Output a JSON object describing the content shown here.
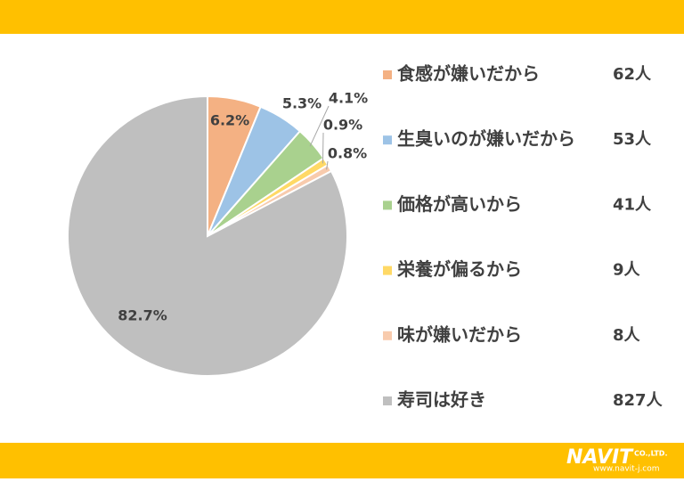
{
  "chart_data": {
    "type": "pie",
    "categories": [
      "食感が嫌いだから",
      "生臭いのが嫌いだから",
      "価格が高いから",
      "栄養が偏るから",
      "味が嫌いだから",
      "寿司は好き"
    ],
    "values": [
      6.2,
      5.3,
      4.1,
      0.9,
      0.8,
      82.7
    ],
    "value_labels": [
      "6.2%",
      "5.3%",
      "4.1%",
      "0.9%",
      "0.8%",
      "82.7%"
    ],
    "colors": [
      "#f4b183",
      "#9dc3e6",
      "#a9d18e",
      "#ffd966",
      "#f8cbad",
      "#bfbfbf"
    ],
    "counts": [
      {
        "value": 62,
        "label": "62人"
      },
      {
        "value": 53,
        "label": "53人"
      },
      {
        "value": 41,
        "label": "41人"
      },
      {
        "value": 9,
        "label": "9人"
      },
      {
        "value": 8,
        "label": "8人"
      },
      {
        "value": 827,
        "label": "827人"
      }
    ]
  },
  "logo": {
    "name": "NAVIT",
    "suffix": "CO.,LTD.",
    "url": "www.navit-j.com"
  }
}
